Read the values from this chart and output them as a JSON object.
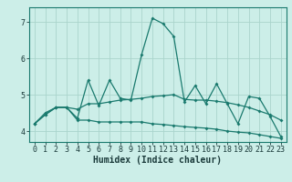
{
  "xlabel": "Humidex (Indice chaleur)",
  "ylabel": "",
  "xlim": [
    -0.5,
    23.5
  ],
  "ylim": [
    3.7,
    7.4
  ],
  "xticks": [
    0,
    1,
    2,
    3,
    4,
    5,
    6,
    7,
    8,
    9,
    10,
    11,
    12,
    13,
    14,
    15,
    16,
    17,
    18,
    19,
    20,
    21,
    22,
    23
  ],
  "yticks": [
    4,
    5,
    6,
    7
  ],
  "bg_color": "#cceee8",
  "grid_color": "#aad4cc",
  "line_color": "#1a7a6e",
  "line1": [
    4.2,
    4.5,
    4.65,
    4.65,
    4.35,
    5.4,
    4.7,
    5.4,
    4.9,
    4.85,
    6.1,
    7.1,
    6.95,
    6.6,
    4.8,
    5.25,
    4.75,
    5.3,
    4.75,
    4.2,
    4.95,
    4.9,
    4.4,
    3.85
  ],
  "line2": [
    4.2,
    4.45,
    4.65,
    4.65,
    4.6,
    4.75,
    4.75,
    4.8,
    4.85,
    4.87,
    4.9,
    4.95,
    4.97,
    5.0,
    4.87,
    4.85,
    4.85,
    4.82,
    4.78,
    4.72,
    4.65,
    4.55,
    4.45,
    4.3
  ],
  "line3": [
    4.2,
    4.45,
    4.65,
    4.65,
    4.3,
    4.3,
    4.25,
    4.25,
    4.25,
    4.25,
    4.25,
    4.2,
    4.18,
    4.15,
    4.12,
    4.1,
    4.08,
    4.05,
    4.0,
    3.97,
    3.95,
    3.9,
    3.85,
    3.8
  ],
  "tick_fontsize": 6,
  "xlabel_fontsize": 7,
  "marker": "D",
  "markersize": 2.0,
  "linewidth": 0.9
}
